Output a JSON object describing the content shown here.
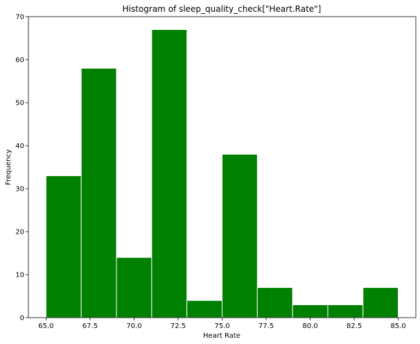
{
  "chart_data": {
    "type": "bar",
    "subtype": "histogram",
    "title": "Histogram of sleep_quality_check[\"Heart.Rate\"]",
    "xlabel": "Heart Rate",
    "ylabel": "Frequency",
    "bin_edges": [
      65.0,
      67.0,
      69.0,
      71.0,
      73.0,
      75.0,
      77.0,
      79.0,
      81.0,
      83.0,
      85.0
    ],
    "values": [
      33,
      58,
      14,
      67,
      4,
      38,
      7,
      3,
      3,
      7
    ],
    "xlim": [
      64.0,
      86.0
    ],
    "ylim": [
      0,
      70
    ],
    "xticks": [
      65.0,
      67.5,
      70.0,
      72.5,
      75.0,
      77.5,
      80.0,
      82.5,
      85.0
    ],
    "xtick_labels": [
      "65.0",
      "67.5",
      "70.0",
      "72.5",
      "75.0",
      "77.5",
      "80.0",
      "82.5",
      "85.0"
    ],
    "yticks": [
      0,
      10,
      20,
      30,
      40,
      50,
      60,
      70
    ],
    "ytick_labels": [
      "0",
      "10",
      "20",
      "30",
      "40",
      "50",
      "60",
      "70"
    ],
    "bar_color": "#008000",
    "edge_color": "#ffffff",
    "grid": false
  }
}
